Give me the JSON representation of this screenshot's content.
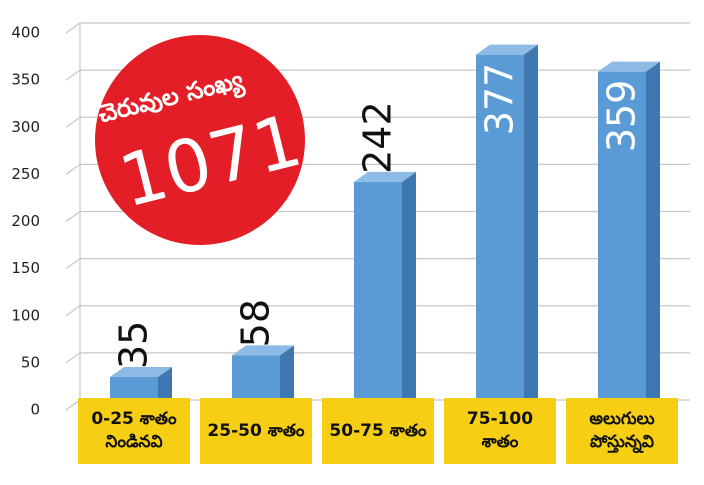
{
  "chart_data": {
    "type": "bar3d",
    "categories": [
      "0-25 శాతం నిండినవి",
      "25-50 శాతం",
      "50-75 శాతం",
      "75-100 శాతం",
      "అలుగులు పోస్తున్నవి"
    ],
    "values": [
      35,
      58,
      242,
      377,
      359
    ],
    "color": "#5b9bd5",
    "ylim": [
      0,
      400
    ],
    "yticks": [
      0,
      50,
      100,
      150,
      200,
      250,
      300,
      350,
      400
    ],
    "grid": true,
    "annotation": {
      "label": "చెరువుల సంఖ్య",
      "total": "1071",
      "color": "#e31e26"
    }
  }
}
